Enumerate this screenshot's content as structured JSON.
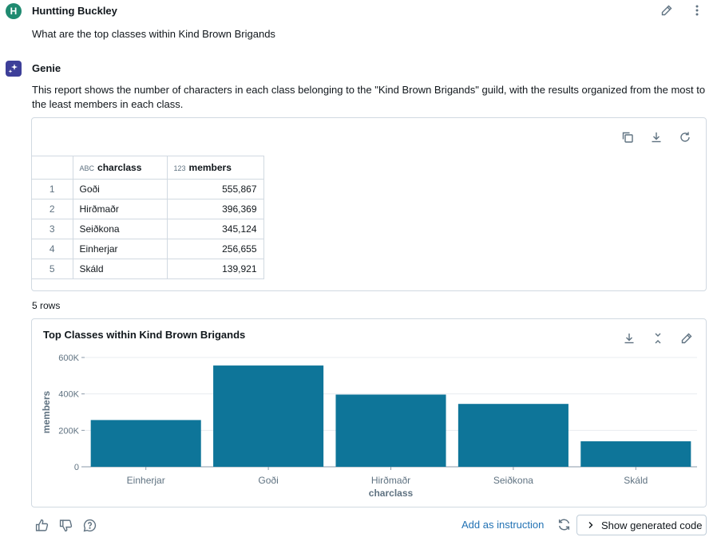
{
  "user": {
    "initial": "H",
    "name": "Huntting Buckley",
    "question": "What are the top classes within Kind Brown Brigands"
  },
  "genie": {
    "name": "Genie",
    "description": "This report shows the number of characters in each class belonging to the \"Kind Brown Brigands\" guild, with the results organized from the most to the least members in each class."
  },
  "table": {
    "columns": [
      {
        "icon": "ABC",
        "label": "charclass"
      },
      {
        "icon": "123",
        "label": "members"
      }
    ],
    "rows": [
      {
        "index": "1",
        "charclass": "Goði",
        "members": "555,867"
      },
      {
        "index": "2",
        "charclass": "Hirðmaðr",
        "members": "396,369"
      },
      {
        "index": "3",
        "charclass": "Seiðkona",
        "members": "345,124"
      },
      {
        "index": "4",
        "charclass": "Einherjar",
        "members": "256,655"
      },
      {
        "index": "5",
        "charclass": "Skáld",
        "members": "139,921"
      }
    ],
    "row_count": "5 rows"
  },
  "chart_data": {
    "type": "bar",
    "title": "Top Classes within Kind Brown Brigands",
    "xlabel": "charclass",
    "ylabel": "members",
    "categories": [
      "Einherjar",
      "Goði",
      "Hirðmaðr",
      "Seiðkona",
      "Skáld"
    ],
    "values": [
      256655,
      555867,
      396369,
      345124,
      139921
    ],
    "ylim": [
      0,
      600000
    ],
    "yticks": [
      0,
      200000,
      400000,
      600000
    ],
    "ytick_labels": [
      "0",
      "200K",
      "400K",
      "600K"
    ],
    "bar_color": "#0e7599",
    "grid": true
  },
  "footer": {
    "add_instruction": "Add as instruction",
    "show_code": "Show generated code"
  },
  "colors": {
    "accent_link": "#2272b4",
    "user_avatar": "#1f8a70",
    "genie_avatar": "#3d3f99"
  }
}
